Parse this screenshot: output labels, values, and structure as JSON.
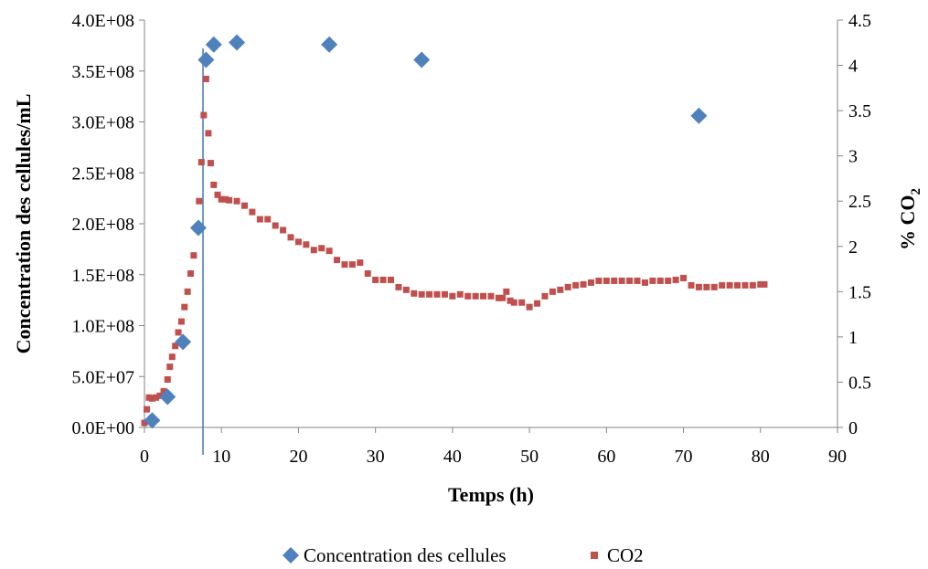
{
  "chart_data": {
    "type": "scatter",
    "xlabel": "Temps (h)",
    "ylabel_left": "Concentration des cellules/mL",
    "ylabel_right_main": "% CO",
    "ylabel_right_sub": "2",
    "xlim": [
      0,
      90
    ],
    "xticks": [
      "0",
      "10",
      "20",
      "30",
      "40",
      "50",
      "60",
      "70",
      "80",
      "90"
    ],
    "ylim_left": [
      0,
      400000000
    ],
    "yticks_left": [
      "0.0E+00",
      "5.0E+07",
      "1.0E+08",
      "1.5E+08",
      "2.0E+08",
      "2.5E+08",
      "3.0E+08",
      "3.5E+08",
      "4.0E+08"
    ],
    "ylim_right": [
      0,
      4.5
    ],
    "yticks_right": [
      "0",
      "0.5",
      "1",
      "1.5",
      "2",
      "2.5",
      "3",
      "3.5",
      "4",
      "4.5"
    ],
    "grid": false,
    "legend_position": "bottom",
    "vertical_line_x": 7.6,
    "series": [
      {
        "name": "Concentration des cellules",
        "marker": "diamond",
        "color": "#4F81BD",
        "axis": "left",
        "x": [
          1,
          3,
          5,
          7,
          8,
          9,
          12,
          24,
          36,
          72
        ],
        "y": [
          7000000,
          30000000,
          84000000,
          196000000,
          361000000,
          376000000,
          378000000,
          376000000,
          361000000,
          306000000
        ]
      },
      {
        "name": "CO2",
        "marker": "square",
        "color": "#C0504D",
        "axis": "right",
        "x": [
          0,
          0.3,
          0.6,
          1,
          1.5,
          2,
          2.5,
          3,
          3.3,
          3.6,
          4,
          4.4,
          4.8,
          5.2,
          5.6,
          6,
          6.4,
          6.8,
          7.1,
          7.4,
          7.7,
          8,
          8.3,
          8.6,
          9,
          9.5,
          10,
          10.5,
          11,
          12,
          13,
          14,
          15,
          16,
          17,
          18,
          19,
          20,
          21,
          22,
          23,
          24,
          25,
          26,
          27,
          28,
          29,
          30,
          31,
          32,
          33,
          34,
          35,
          36,
          37,
          38,
          39,
          40,
          41,
          42,
          43,
          44,
          45,
          46,
          46.5,
          47,
          47.5,
          48,
          49,
          50,
          51,
          52,
          53,
          54,
          55,
          56,
          57,
          58,
          59,
          60,
          61,
          62,
          63,
          64,
          65,
          66,
          67,
          68,
          69,
          70,
          71,
          72,
          73,
          74,
          75,
          76,
          77,
          78,
          79,
          80,
          80.5
        ],
        "y": [
          0.05,
          0.2,
          0.33,
          0.32,
          0.33,
          0.35,
          0.4,
          0.53,
          0.67,
          0.78,
          0.9,
          1.05,
          1.17,
          1.33,
          1.5,
          1.7,
          1.9,
          2.2,
          2.5,
          2.93,
          3.45,
          3.85,
          3.25,
          2.92,
          2.68,
          2.57,
          2.52,
          2.52,
          2.51,
          2.5,
          2.45,
          2.38,
          2.3,
          2.3,
          2.23,
          2.18,
          2.1,
          2.05,
          2.02,
          1.96,
          1.98,
          1.95,
          1.85,
          1.8,
          1.8,
          1.82,
          1.7,
          1.63,
          1.63,
          1.63,
          1.55,
          1.52,
          1.48,
          1.47,
          1.47,
          1.47,
          1.47,
          1.45,
          1.47,
          1.45,
          1.45,
          1.45,
          1.45,
          1.43,
          1.43,
          1.5,
          1.4,
          1.38,
          1.38,
          1.33,
          1.37,
          1.45,
          1.5,
          1.52,
          1.55,
          1.57,
          1.58,
          1.6,
          1.62,
          1.62,
          1.62,
          1.62,
          1.62,
          1.62,
          1.6,
          1.62,
          1.62,
          1.62,
          1.63,
          1.65,
          1.57,
          1.55,
          1.55,
          1.55,
          1.57,
          1.57,
          1.57,
          1.57,
          1.57,
          1.58,
          1.58
        ]
      }
    ]
  }
}
